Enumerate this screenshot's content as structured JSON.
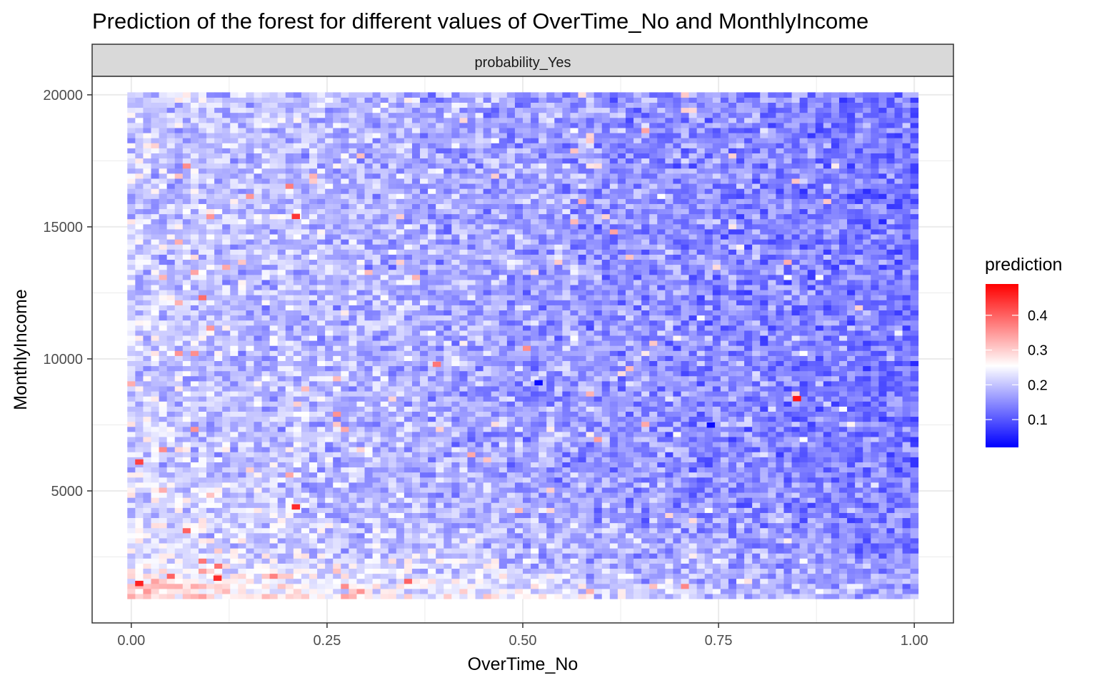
{
  "chart_data": {
    "type": "heatmap",
    "title": "Prediction of the forest for different values of OverTime_No and MonthlyIncome",
    "facet_label": "probability_Yes",
    "xlabel": "OverTime_No",
    "ylabel": "MonthlyIncome",
    "xlim": [
      -0.05,
      1.05
    ],
    "ylim": [
      0,
      20700
    ],
    "x_ticks": [
      {
        "value": 0,
        "label": "0.00"
      },
      {
        "value": 0.25,
        "label": "0.25"
      },
      {
        "value": 0.5,
        "label": "0.50"
      },
      {
        "value": 0.75,
        "label": "0.75"
      },
      {
        "value": 1.0,
        "label": "1.00"
      }
    ],
    "y_ticks": [
      {
        "value": 5000,
        "label": "5000"
      },
      {
        "value": 10000,
        "label": "10000"
      },
      {
        "value": 15000,
        "label": "15000"
      },
      {
        "value": 20000,
        "label": "20000"
      }
    ],
    "grid": true,
    "x_range": [
      0,
      1
    ],
    "y_range": [
      1009,
      19999
    ],
    "grid_resolution": {
      "x_cells": 100,
      "y_cells": 100
    },
    "value_range": [
      0.02,
      0.49
    ],
    "color_scale": {
      "low": "#0000FF",
      "mid": "#FFFFFF",
      "high": "#FF0000",
      "midpoint": 0.255
    },
    "cell_values_note_pattern": {
      "base": 0.21,
      "x_effect": -0.08,
      "low_income_bump": 0.09,
      "low_income_scale": 1500,
      "noise": 0.05
    },
    "highlights": [
      {
        "x": 0.01,
        "y": 1500,
        "value": 0.46
      },
      {
        "x": 0.11,
        "y": 1700,
        "value": 0.45
      },
      {
        "x": 0.21,
        "y": 15400,
        "value": 0.44
      },
      {
        "x": 0.21,
        "y": 4400,
        "value": 0.45
      },
      {
        "x": 0.01,
        "y": 6100,
        "value": 0.43
      },
      {
        "x": 0.85,
        "y": 8500,
        "value": 0.47
      },
      {
        "x": 0.39,
        "y": 9800,
        "value": 0.38
      },
      {
        "x": 0.52,
        "y": 9100,
        "value": 0.03
      },
      {
        "x": 0.74,
        "y": 7500,
        "value": 0.03
      }
    ],
    "legend": {
      "title": "prediction",
      "position": "right",
      "range": [
        0.02,
        0.49
      ],
      "ticks": [
        {
          "value": 0.1,
          "label": "0.1"
        },
        {
          "value": 0.2,
          "label": "0.2"
        },
        {
          "value": 0.3,
          "label": "0.3"
        },
        {
          "value": 0.4,
          "label": "0.4"
        }
      ]
    }
  },
  "colors": {
    "panel_border": "#333333",
    "grid": "#ebebeb",
    "strip_fill": "#d9d9d9"
  }
}
